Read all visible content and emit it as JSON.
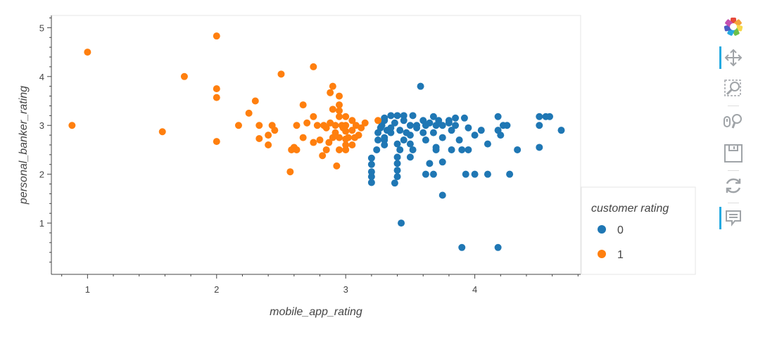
{
  "chart_data": {
    "type": "scatter",
    "xlabel": "mobile_app_rating",
    "ylabel": "personal_banker_rating",
    "xlim": [
      0.72,
      4.82
    ],
    "ylim": [
      -0.05,
      5.25
    ],
    "x_ticks": [
      1,
      2,
      3,
      4
    ],
    "y_ticks": [
      1,
      2,
      3,
      4,
      5
    ],
    "grid": false,
    "legend": {
      "title": "customer rating",
      "position": "right"
    },
    "series": [
      {
        "name": "0",
        "color": "#1f77b4",
        "points": [
          [
            3.58,
            3.8
          ],
          [
            3.43,
            1.0
          ],
          [
            3.9,
            0.5
          ],
          [
            4.18,
            0.5
          ],
          [
            3.75,
            1.57
          ],
          [
            3.2,
            1.83
          ],
          [
            3.38,
            1.82
          ],
          [
            3.2,
            1.95
          ],
          [
            3.2,
            2.05
          ],
          [
            3.2,
            2.2
          ],
          [
            3.2,
            2.33
          ],
          [
            3.4,
            1.95
          ],
          [
            3.4,
            2.08
          ],
          [
            3.4,
            2.22
          ],
          [
            3.4,
            2.35
          ],
          [
            3.5,
            2.35
          ],
          [
            3.52,
            2.5
          ],
          [
            3.5,
            2.62
          ],
          [
            3.62,
            2.0
          ],
          [
            3.68,
            2.0
          ],
          [
            3.65,
            2.22
          ],
          [
            3.7,
            2.5
          ],
          [
            3.82,
            2.5
          ],
          [
            3.9,
            2.5
          ],
          [
            3.95,
            2.5
          ],
          [
            3.75,
            2.25
          ],
          [
            3.93,
            2.0
          ],
          [
            4.0,
            2.0
          ],
          [
            4.1,
            2.0
          ],
          [
            4.27,
            2.0
          ],
          [
            3.42,
            2.5
          ],
          [
            3.24,
            2.5
          ],
          [
            3.3,
            2.7
          ],
          [
            3.4,
            2.62
          ],
          [
            3.6,
            2.85
          ],
          [
            3.62,
            2.7
          ],
          [
            3.7,
            2.55
          ],
          [
            3.88,
            2.7
          ],
          [
            4.0,
            2.8
          ],
          [
            4.1,
            2.62
          ],
          [
            4.2,
            2.8
          ],
          [
            4.18,
            2.9
          ],
          [
            4.25,
            3.0
          ],
          [
            4.33,
            2.5
          ],
          [
            4.5,
            2.55
          ],
          [
            4.67,
            2.9
          ],
          [
            4.5,
            3.0
          ],
          [
            4.5,
            3.18
          ],
          [
            4.55,
            3.18
          ],
          [
            4.58,
            3.18
          ],
          [
            4.22,
            3.0
          ],
          [
            4.18,
            3.18
          ],
          [
            4.05,
            2.9
          ],
          [
            3.92,
            3.15
          ],
          [
            3.8,
            3.1
          ],
          [
            3.85,
            3.0
          ],
          [
            3.82,
            2.9
          ],
          [
            3.75,
            3.0
          ],
          [
            3.7,
            3.0
          ],
          [
            3.68,
            3.18
          ],
          [
            3.62,
            3.0
          ],
          [
            3.55,
            3.0
          ],
          [
            3.5,
            3.0
          ],
          [
            3.45,
            3.2
          ],
          [
            3.4,
            3.2
          ],
          [
            3.35,
            3.2
          ],
          [
            3.3,
            3.15
          ],
          [
            3.28,
            3.0
          ],
          [
            3.25,
            2.85
          ],
          [
            3.27,
            2.95
          ],
          [
            3.3,
            3.1
          ],
          [
            3.32,
            2.9
          ],
          [
            3.35,
            2.85
          ],
          [
            3.38,
            3.05
          ],
          [
            3.42,
            2.9
          ],
          [
            3.45,
            3.1
          ],
          [
            3.47,
            2.85
          ],
          [
            3.5,
            2.8
          ],
          [
            3.52,
            3.2
          ],
          [
            3.35,
            2.95
          ],
          [
            3.3,
            2.75
          ],
          [
            3.45,
            2.7
          ],
          [
            3.55,
            2.95
          ],
          [
            3.6,
            3.1
          ],
          [
            3.65,
            3.05
          ],
          [
            3.68,
            2.85
          ],
          [
            3.72,
            3.1
          ],
          [
            3.8,
            3.05
          ],
          [
            3.85,
            3.15
          ],
          [
            3.3,
            2.6
          ],
          [
            3.25,
            2.7
          ],
          [
            3.95,
            2.95
          ],
          [
            3.75,
            2.75
          ]
        ]
      },
      {
        "name": "1",
        "color": "#ff7f0e",
        "points": [
          [
            0.88,
            3.0
          ],
          [
            1.0,
            4.5
          ],
          [
            1.58,
            2.87
          ],
          [
            1.75,
            4.0
          ],
          [
            2.0,
            4.83
          ],
          [
            2.0,
            3.75
          ],
          [
            2.0,
            3.57
          ],
          [
            2.0,
            2.67
          ],
          [
            2.17,
            3.0
          ],
          [
            2.25,
            3.25
          ],
          [
            2.3,
            3.5
          ],
          [
            2.33,
            3.0
          ],
          [
            2.33,
            2.73
          ],
          [
            2.4,
            2.6
          ],
          [
            2.4,
            2.8
          ],
          [
            2.43,
            3.0
          ],
          [
            2.45,
            2.9
          ],
          [
            2.5,
            4.05
          ],
          [
            2.57,
            2.05
          ],
          [
            2.58,
            2.5
          ],
          [
            2.6,
            2.55
          ],
          [
            2.62,
            2.5
          ],
          [
            2.62,
            3.0
          ],
          [
            2.67,
            3.42
          ],
          [
            2.67,
            2.75
          ],
          [
            2.75,
            4.2
          ],
          [
            2.75,
            3.18
          ],
          [
            2.75,
            2.65
          ],
          [
            2.78,
            3.0
          ],
          [
            2.8,
            2.7
          ],
          [
            2.82,
            2.38
          ],
          [
            2.83,
            3.0
          ],
          [
            2.85,
            2.5
          ],
          [
            2.87,
            2.65
          ],
          [
            2.88,
            3.67
          ],
          [
            2.9,
            3.8
          ],
          [
            2.9,
            3.33
          ],
          [
            2.9,
            2.75
          ],
          [
            2.92,
            2.85
          ],
          [
            2.92,
            3.0
          ],
          [
            2.95,
            3.6
          ],
          [
            2.95,
            3.42
          ],
          [
            2.95,
            3.3
          ],
          [
            2.95,
            3.18
          ],
          [
            2.97,
            3.0
          ],
          [
            2.95,
            2.75
          ],
          [
            2.95,
            2.5
          ],
          [
            2.93,
            2.17
          ],
          [
            3.0,
            3.18
          ],
          [
            3.0,
            3.0
          ],
          [
            3.0,
            2.88
          ],
          [
            3.0,
            2.72
          ],
          [
            3.0,
            2.6
          ],
          [
            3.0,
            2.5
          ],
          [
            3.05,
            3.1
          ],
          [
            3.05,
            2.9
          ],
          [
            3.05,
            2.6
          ],
          [
            3.07,
            2.75
          ],
          [
            3.08,
            3.0
          ],
          [
            3.1,
            2.8
          ],
          [
            3.12,
            2.95
          ],
          [
            3.15,
            3.05
          ],
          [
            3.25,
            3.1
          ],
          [
            2.7,
            3.05
          ],
          [
            2.85,
            2.95
          ],
          [
            2.88,
            3.05
          ],
          [
            3.02,
            2.75
          ],
          [
            2.98,
            2.95
          ]
        ]
      }
    ]
  },
  "toolbar": {
    "tools": [
      {
        "name": "bokeh-logo",
        "active": false
      },
      {
        "name": "pan-tool",
        "active": true
      },
      {
        "name": "box-zoom-tool",
        "active": false
      },
      {
        "name": "wheel-zoom-tool",
        "active": false
      },
      {
        "name": "save-tool",
        "active": false
      },
      {
        "name": "reset-tool",
        "active": false
      },
      {
        "name": "hover-tool",
        "active": true
      }
    ]
  }
}
